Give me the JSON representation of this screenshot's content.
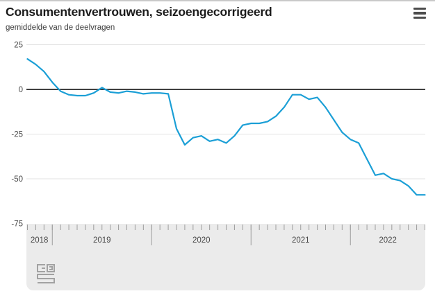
{
  "header": {
    "title": "Consumentenvertrouwen, seizoengecorrigeerd",
    "subtitle": "gemiddelde van de deelvragen",
    "menu_icon": "hamburger-menu-icon"
  },
  "footer": {
    "logo_icon": "cbs-logo"
  },
  "colors": {
    "line": "#1b9fd6",
    "zero_line": "#404040",
    "gridline": "#e2e2e2",
    "axis_band": "#ebebeb",
    "tick": "#9c9c9c",
    "label": "#474747",
    "title_text": "#1b1b1b",
    "logo": "#a2a2a2"
  },
  "chart_data": {
    "type": "line",
    "title": "Consumentenvertrouwen, seizoengecorrigeerd",
    "subtitle": "gemiddelde van de deelvragen",
    "legend": "none",
    "grid": "horizontal-only",
    "ylim": [
      -75,
      25
    ],
    "y_ticks": [
      25,
      0,
      -25,
      -50,
      -75
    ],
    "x_tick_years": [
      "2018",
      "2019",
      "2020",
      "2021",
      "2022"
    ],
    "x": [
      "2018-10",
      "2018-11",
      "2018-12",
      "2019-01",
      "2019-02",
      "2019-03",
      "2019-04",
      "2019-05",
      "2019-06",
      "2019-07",
      "2019-08",
      "2019-09",
      "2019-10",
      "2019-11",
      "2019-12",
      "2020-01",
      "2020-02",
      "2020-03",
      "2020-04",
      "2020-05",
      "2020-06",
      "2020-07",
      "2020-08",
      "2020-09",
      "2020-10",
      "2020-11",
      "2020-12",
      "2021-01",
      "2021-02",
      "2021-03",
      "2021-04",
      "2021-05",
      "2021-06",
      "2021-07",
      "2021-08",
      "2021-09",
      "2021-10",
      "2021-11",
      "2021-12",
      "2022-01",
      "2022-02",
      "2022-03",
      "2022-04",
      "2022-05",
      "2022-06",
      "2022-07",
      "2022-08",
      "2022-09",
      "2022-10"
    ],
    "series": [
      {
        "name": "Consumentenvertrouwen",
        "values": [
          17,
          14,
          10,
          4,
          -1,
          -3,
          -3.5,
          -3.5,
          -2,
          1,
          -1.5,
          -2,
          -1,
          -1.5,
          -2.5,
          -2,
          -2,
          -2.5,
          -22,
          -31,
          -27,
          -26,
          -29,
          -28,
          -30,
          -26,
          -20,
          -19,
          -19,
          -18,
          -15,
          -10,
          -3,
          -3,
          -5.5,
          -4.5,
          -10,
          -17,
          -24,
          -28,
          -30,
          -39,
          -48,
          -47,
          -50,
          -51,
          -54,
          -59,
          -59
        ]
      }
    ]
  }
}
